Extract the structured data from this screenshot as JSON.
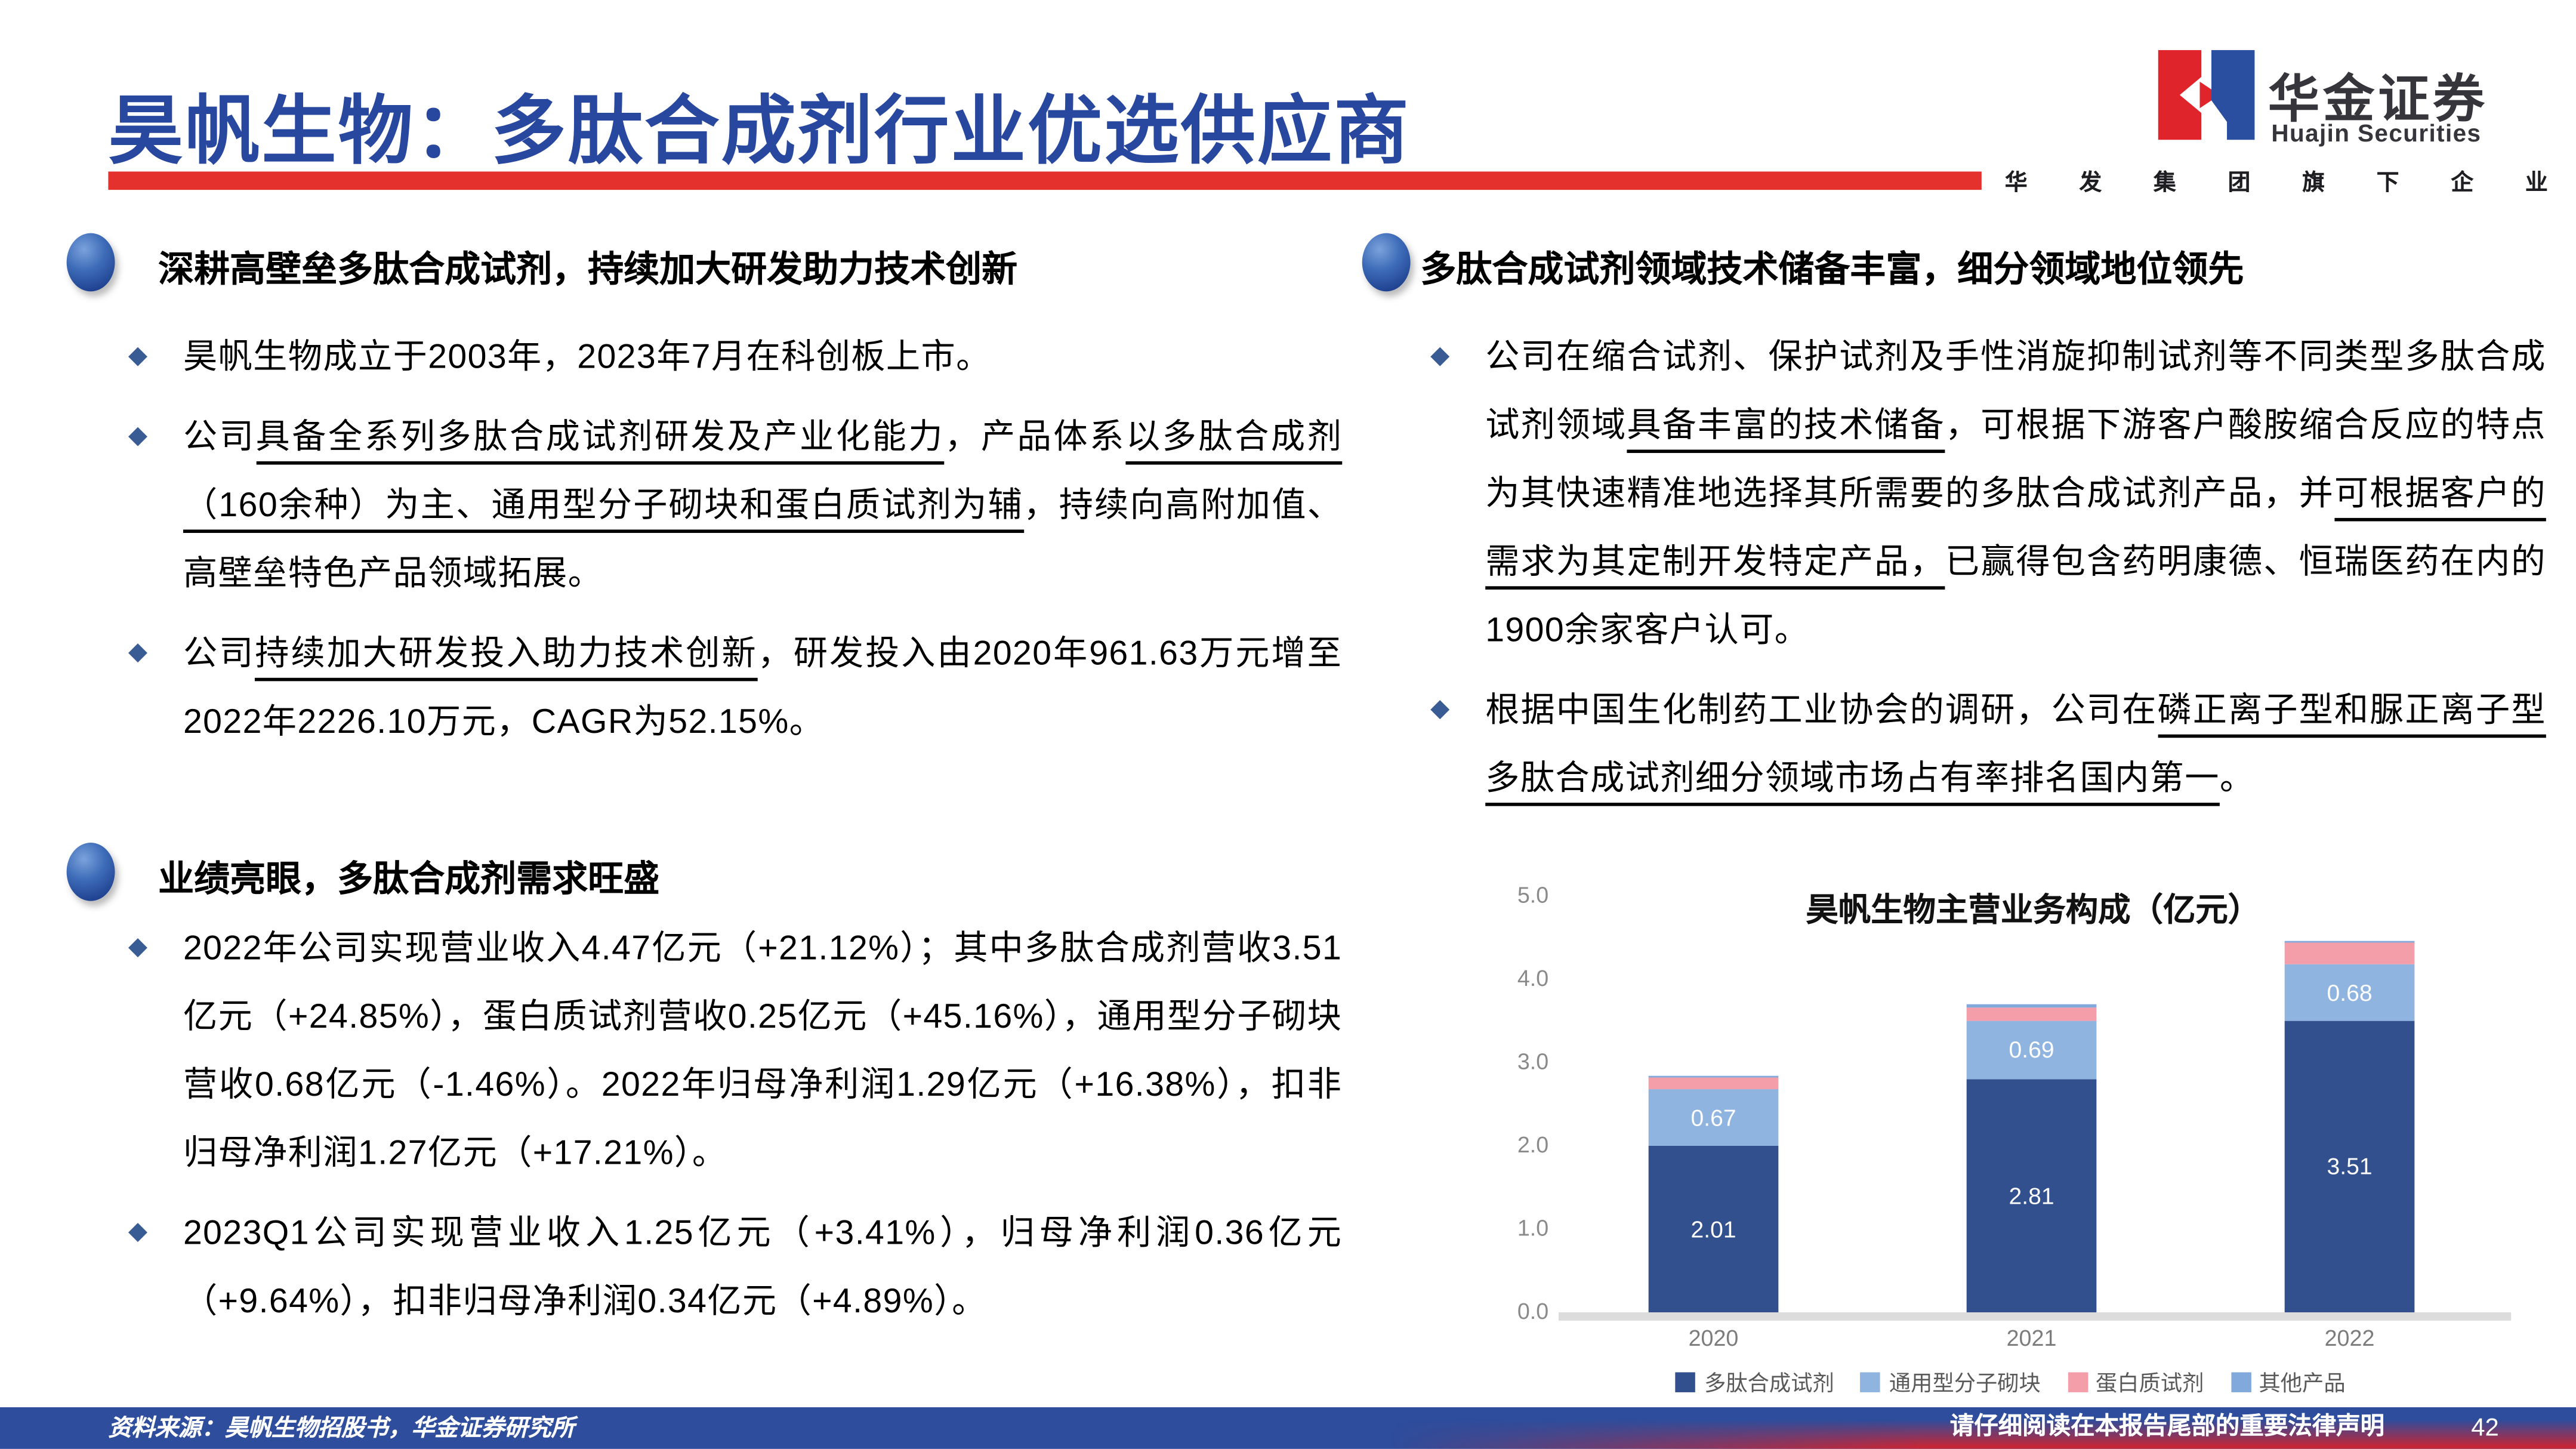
{
  "slide": {
    "title": "昊帆生物：多肽合成剂行业优选供应商"
  },
  "logo": {
    "cn": "华金证券",
    "en": "Huajin Securities",
    "tagline": "华发集团旗下企业"
  },
  "sections": {
    "left1": {
      "heading": "深耕高壁垒多肽合成试剂，持续加大研发助力技术创新",
      "bullets": [
        [
          {
            "t": "昊帆生物成立于2003年，2023年7月在科创板上市。"
          }
        ],
        [
          {
            "t": "公司"
          },
          {
            "t": "具备全系列多肽合成试剂研发及产业化能力",
            "u": true
          },
          {
            "t": "，产品体系"
          },
          {
            "t": "以多肽合成剂（160余种）为主、通用型分子砌块和蛋白质试剂为辅",
            "u": true
          },
          {
            "t": "，持续向高附加值、高壁垒特色产品领域拓展。"
          }
        ],
        [
          {
            "t": "公司"
          },
          {
            "t": "持续加大研发投入助力技术创新",
            "u": true
          },
          {
            "t": "，研发投入由2020年961.63万元增至2022年2226.10万元，CAGR为52.15%。"
          }
        ]
      ]
    },
    "left2": {
      "heading": "业绩亮眼，多肽合成剂需求旺盛",
      "bullets": [
        [
          {
            "t": "2022年公司实现营业收入4.47亿元（+21.12%）；其中多肽合成剂营收3.51亿元（+24.85%），蛋白质试剂营收0.25亿元（+45.16%），通用型分子砌块营收0.68亿元（-1.46%）。2022年归母净利润1.29亿元（+16.38%），扣非归母净利润1.27亿元（+17.21%）。"
          }
        ],
        [
          {
            "t": "2023Q1公司实现营业收入1.25亿元（+3.41%），归母净利润0.36亿元（+9.64%），扣非归母净利润0.34亿元（+4.89%）。"
          }
        ]
      ]
    },
    "right1": {
      "heading": "多肽合成试剂领域技术储备丰富，细分领域地位领先",
      "bullets": [
        [
          {
            "t": "公司在缩合试剂、保护试剂及手性消旋抑制试剂等不同类型多肽合成试剂领域"
          },
          {
            "t": "具备丰富的技术储备",
            "u": true
          },
          {
            "t": "，可根据下游客户酸胺缩合反应的特点为其快速精准地选择其所需要的多肽合成试剂产品，并"
          },
          {
            "t": "可根据客户的需求为其定制开发特定产品，",
            "u": true
          },
          {
            "t": "已赢得包含药明康德、恒瑞医药在内的1900余家客户认可。"
          }
        ],
        [
          {
            "t": "根据中国生化制药工业协会的调研，公司在"
          },
          {
            "t": "磷正离子型和脲正离子型多肽合成试剂细分领域市场占有率排名国内第一",
            "u": true
          },
          {
            "t": "。"
          }
        ]
      ]
    }
  },
  "chart_data": {
    "type": "bar",
    "stacked": true,
    "title": "昊帆生物主营业务构成（亿元）",
    "categories": [
      "2020",
      "2021",
      "2022"
    ],
    "series": [
      {
        "name": "多肽合成试剂",
        "color": "#32508E",
        "values": [
          2.01,
          2.81,
          3.51
        ],
        "labels": [
          "2.01",
          "2.81",
          "3.51"
        ]
      },
      {
        "name": "通用型分子砌块",
        "color": "#8FB4E0",
        "values": [
          0.67,
          0.69,
          0.68
        ],
        "labels": [
          "0.67",
          "0.69",
          "0.68"
        ]
      },
      {
        "name": "蛋白质试剂",
        "color": "#F49EA9",
        "values": [
          0.15,
          0.17,
          0.25
        ],
        "labels": [
          null,
          null,
          null
        ]
      },
      {
        "name": "其他产品",
        "color": "#82A9DC",
        "values": [
          0.02,
          0.03,
          0.03
        ],
        "labels": [
          null,
          null,
          null
        ]
      }
    ],
    "ylim": [
      0,
      5
    ],
    "yticks": [
      "5.0",
      "4.0",
      "3.0",
      "2.0",
      "1.0",
      "0.0"
    ],
    "xlabel": "",
    "ylabel": "",
    "grid": false,
    "legend_position": "bottom"
  },
  "footer": {
    "source": "资料来源：昊帆生物招股书，华金证券研究所",
    "legal": "请仔细阅读在本报告尾部的重要法律声明",
    "page": "42"
  }
}
